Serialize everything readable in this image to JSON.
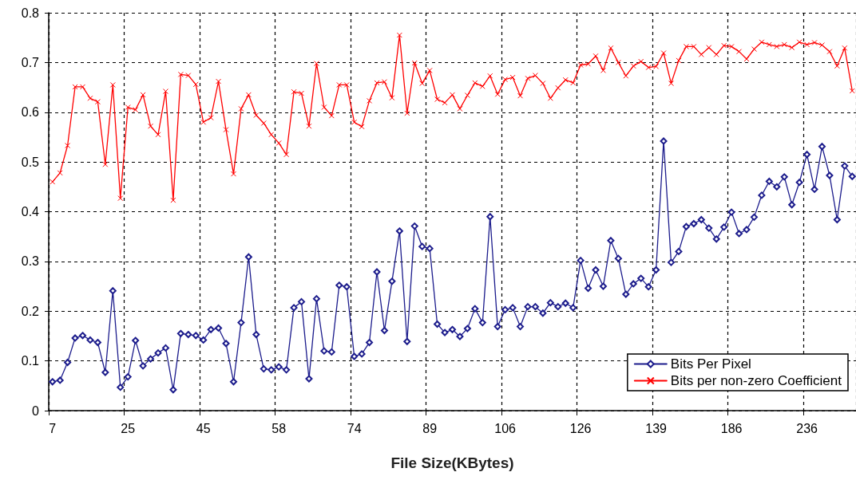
{
  "chart_data": {
    "type": "line",
    "xlabel": "File Size(KBytes)",
    "categories": [
      "7",
      null,
      null,
      null,
      null,
      null,
      null,
      null,
      null,
      null,
      "25",
      null,
      null,
      null,
      null,
      null,
      null,
      null,
      null,
      null,
      "45",
      null,
      null,
      null,
      null,
      null,
      null,
      null,
      null,
      null,
      "58",
      null,
      null,
      null,
      null,
      null,
      null,
      null,
      null,
      null,
      "74",
      null,
      null,
      null,
      null,
      null,
      null,
      null,
      null,
      null,
      "89",
      null,
      null,
      null,
      null,
      null,
      null,
      null,
      null,
      null,
      "106",
      null,
      null,
      null,
      null,
      null,
      null,
      null,
      null,
      null,
      "126",
      null,
      null,
      null,
      null,
      null,
      null,
      null,
      null,
      null,
      "139",
      null,
      null,
      null,
      null,
      null,
      null,
      null,
      null,
      null,
      "186",
      null,
      null,
      null,
      null,
      null,
      null,
      null,
      null,
      null,
      "236",
      null,
      null,
      null,
      null,
      null,
      null
    ],
    "series": [
      {
        "name": "Bits Per Pixel",
        "color": "#1c1c8c",
        "marker": "diamond",
        "values": [
          0.058,
          0.061,
          0.097,
          0.146,
          0.151,
          0.142,
          0.137,
          0.077,
          0.241,
          0.047,
          0.068,
          0.141,
          0.09,
          0.104,
          0.116,
          0.126,
          0.042,
          0.155,
          0.153,
          0.151,
          0.142,
          0.163,
          0.166,
          0.135,
          0.058,
          0.177,
          0.309,
          0.153,
          0.084,
          0.082,
          0.088,
          0.082,
          0.207,
          0.219,
          0.064,
          0.225,
          0.12,
          0.118,
          0.252,
          0.249,
          0.109,
          0.114,
          0.137,
          0.279,
          0.161,
          0.26,
          0.361,
          0.139,
          0.371,
          0.33,
          0.326,
          0.174,
          0.157,
          0.163,
          0.149,
          0.165,
          0.205,
          0.177,
          0.39,
          0.169,
          0.203,
          0.207,
          0.169,
          0.209,
          0.209,
          0.196,
          0.217,
          0.209,
          0.216,
          0.207,
          0.302,
          0.246,
          0.283,
          0.25,
          0.342,
          0.306,
          0.234,
          0.255,
          0.266,
          0.249,
          0.283,
          0.542,
          0.298,
          0.32,
          0.37,
          0.376,
          0.384,
          0.367,
          0.345,
          0.369,
          0.399,
          0.356,
          0.364,
          0.389,
          0.433,
          0.461,
          0.45,
          0.47,
          0.414,
          0.459,
          0.515,
          0.445,
          0.531,
          0.473,
          0.384,
          0.492,
          0.471
        ]
      },
      {
        "name": "Bits per non-zero Coefficient",
        "color": "#ff0000",
        "marker": "cross",
        "values": [
          0.46,
          0.478,
          0.533,
          0.651,
          0.651,
          0.628,
          0.621,
          0.495,
          0.655,
          0.427,
          0.61,
          0.605,
          0.635,
          0.572,
          0.555,
          0.642,
          0.423,
          0.676,
          0.674,
          0.656,
          0.58,
          0.589,
          0.662,
          0.565,
          0.476,
          0.607,
          0.635,
          0.594,
          0.578,
          0.555,
          0.538,
          0.515,
          0.641,
          0.638,
          0.572,
          0.698,
          0.61,
          0.593,
          0.655,
          0.655,
          0.58,
          0.571,
          0.623,
          0.659,
          0.661,
          0.629,
          0.755,
          0.598,
          0.699,
          0.658,
          0.684,
          0.626,
          0.619,
          0.635,
          0.607,
          0.634,
          0.659,
          0.652,
          0.673,
          0.636,
          0.666,
          0.67,
          0.633,
          0.668,
          0.674,
          0.658,
          0.628,
          0.649,
          0.665,
          0.659,
          0.695,
          0.697,
          0.713,
          0.684,
          0.729,
          0.7,
          0.673,
          0.693,
          0.702,
          0.69,
          0.692,
          0.719,
          0.658,
          0.704,
          0.732,
          0.732,
          0.716,
          0.73,
          0.716,
          0.734,
          0.732,
          0.722,
          0.707,
          0.727,
          0.741,
          0.736,
          0.732,
          0.736,
          0.73,
          0.741,
          0.736,
          0.74,
          0.735,
          0.722,
          0.693,
          0.729,
          0.643
        ]
      }
    ],
    "ylim": [
      0,
      0.8
    ],
    "yticks": [
      0,
      0.1,
      0.2,
      0.3,
      0.4,
      0.5,
      0.6,
      0.7,
      0.8
    ],
    "grid": true,
    "legend": "bottom right",
    "line_style": "solid"
  }
}
